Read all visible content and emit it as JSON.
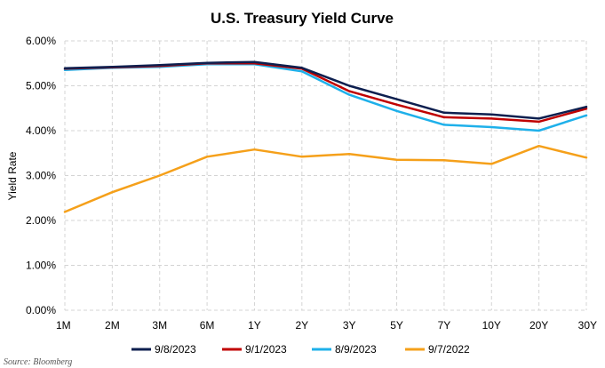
{
  "chart_data": {
    "type": "line",
    "title": "U.S. Treasury Yield Curve",
    "ylabel": "Yield Rate",
    "xlabel": "",
    "categories": [
      "1M",
      "2M",
      "3M",
      "6M",
      "1Y",
      "2Y",
      "3Y",
      "5Y",
      "7Y",
      "10Y",
      "20Y",
      "30Y"
    ],
    "ylim": [
      0,
      6
    ],
    "yticks": [
      "0.00%",
      "1.00%",
      "2.00%",
      "3.00%",
      "4.00%",
      "5.00%",
      "6.00%"
    ],
    "grid": true,
    "legend_position": "bottom",
    "series": [
      {
        "name": "9/8/2023",
        "color": "#0d1f4f",
        "values": [
          5.39,
          5.42,
          5.46,
          5.51,
          5.53,
          5.4,
          5.0,
          4.7,
          4.4,
          4.36,
          4.27,
          4.53
        ]
      },
      {
        "name": "9/1/2023",
        "color": "#c00000",
        "values": [
          5.38,
          5.41,
          5.44,
          5.5,
          5.5,
          5.38,
          4.88,
          4.58,
          4.3,
          4.27,
          4.2,
          4.49
        ]
      },
      {
        "name": "8/9/2023",
        "color": "#1eb0ea",
        "values": [
          5.35,
          5.4,
          5.42,
          5.48,
          5.48,
          5.32,
          4.8,
          4.44,
          4.13,
          4.08,
          4.0,
          4.34
        ]
      },
      {
        "name": "9/7/2022",
        "color": "#f5a01a",
        "values": [
          2.19,
          2.63,
          3.0,
          3.42,
          3.58,
          3.42,
          3.48,
          3.35,
          3.34,
          3.26,
          3.66,
          3.4
        ]
      }
    ],
    "source": "Source: Bloomberg"
  }
}
